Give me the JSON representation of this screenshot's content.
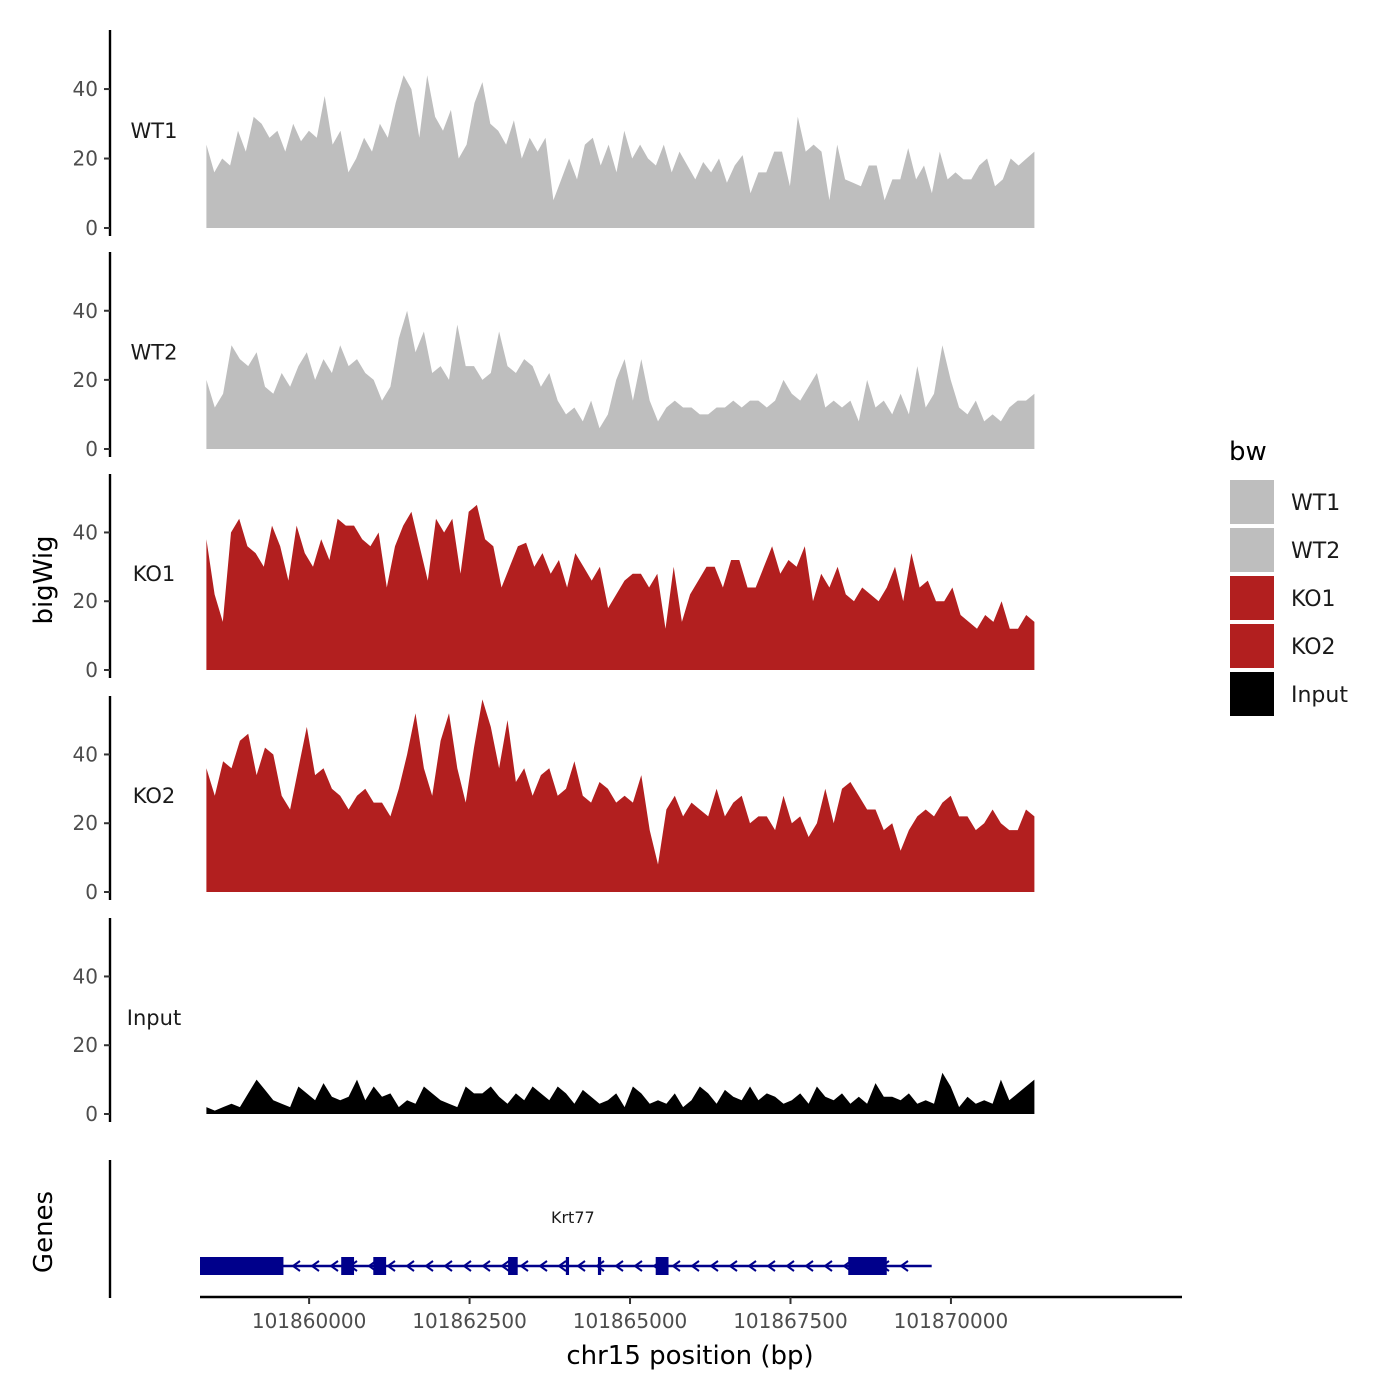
{
  "chart_data": {
    "type": "area",
    "ylabel": "bigWig",
    "xlabel": "chr15 position (bp)",
    "genes_label": "Genes",
    "ylim": [
      0,
      57
    ],
    "yticks": [
      0,
      20,
      40
    ],
    "x_range": [
      101858300,
      101873600
    ],
    "xticks": [
      101860000,
      101862500,
      101865000,
      101867500,
      101870000
    ],
    "xtick_labels": [
      "101860000",
      "101862500",
      "101865000",
      "101867500",
      "101870000"
    ],
    "legend": {
      "title": "bw",
      "position": "right",
      "entries": [
        {
          "label": "WT1",
          "color": "#bebebe"
        },
        {
          "label": "WT2",
          "color": "#bebebe"
        },
        {
          "label": "KO1",
          "color": "#b21f1f"
        },
        {
          "label": "KO2",
          "color": "#b21f1f"
        },
        {
          "label": "Input",
          "color": "#000000"
        }
      ]
    },
    "x_start": 101858400,
    "x_end": 101871300,
    "tracks": [
      {
        "name": "WT1",
        "color": "#bebebe",
        "values": [
          24,
          16,
          20,
          18,
          28,
          22,
          32,
          30,
          26,
          28,
          22,
          30,
          25,
          28,
          26,
          38,
          24,
          28,
          16,
          20,
          26,
          22,
          30,
          26,
          36,
          44,
          40,
          26,
          44,
          32,
          28,
          34,
          20,
          24,
          36,
          42,
          30,
          28,
          24,
          31,
          20,
          26,
          22,
          26,
          8,
          14,
          20,
          14,
          24,
          26,
          18,
          24,
          16,
          28,
          20,
          24,
          20,
          18,
          24,
          16,
          22,
          18,
          14,
          19,
          16,
          20,
          13,
          18,
          21,
          10,
          16,
          16,
          22,
          22,
          12,
          32,
          22,
          24,
          22,
          8,
          24,
          14,
          13,
          12,
          18,
          18,
          8,
          14,
          14,
          23,
          14,
          18,
          10,
          22,
          14,
          16,
          14,
          14,
          18,
          20,
          12,
          14,
          20,
          18,
          20,
          22
        ]
      },
      {
        "name": "WT2",
        "color": "#bebebe",
        "values": [
          20,
          12,
          16,
          30,
          26,
          24,
          28,
          18,
          16,
          22,
          18,
          24,
          28,
          20,
          26,
          22,
          30,
          24,
          26,
          22,
          20,
          14,
          18,
          32,
          40,
          28,
          34,
          22,
          24,
          20,
          36,
          24,
          24,
          20,
          22,
          34,
          24,
          22,
          26,
          24,
          18,
          22,
          14,
          10,
          12,
          8,
          14,
          6,
          10,
          20,
          26,
          14,
          26,
          14,
          8,
          12,
          14,
          12,
          12,
          10,
          10,
          12,
          12,
          14,
          12,
          14,
          14,
          12,
          14,
          20,
          16,
          14,
          18,
          22,
          12,
          14,
          12,
          14,
          8,
          20,
          12,
          14,
          10,
          16,
          10,
          24,
          12,
          16,
          30,
          20,
          12,
          10,
          14,
          8,
          10,
          8,
          12,
          14,
          14,
          16
        ]
      },
      {
        "name": "KO1",
        "color": "#b21f1f",
        "values": [
          38,
          22,
          14,
          40,
          44,
          36,
          34,
          30,
          42,
          36,
          26,
          42,
          34,
          30,
          38,
          32,
          44,
          42,
          42,
          38,
          36,
          40,
          24,
          36,
          42,
          46,
          36,
          26,
          44,
          40,
          44,
          28,
          46,
          48,
          38,
          36,
          24,
          30,
          36,
          37,
          30,
          34,
          28,
          32,
          24,
          34,
          30,
          26,
          30,
          18,
          22,
          26,
          28,
          28,
          24,
          28,
          12,
          30,
          14,
          22,
          26,
          30,
          30,
          24,
          32,
          32,
          24,
          24,
          30,
          36,
          28,
          32,
          30,
          36,
          20,
          28,
          24,
          30,
          22,
          20,
          24,
          22,
          20,
          24,
          30,
          20,
          34,
          24,
          26,
          20,
          20,
          24,
          16,
          14,
          12,
          16,
          14,
          20,
          12,
          12,
          16,
          14
        ]
      },
      {
        "name": "KO2",
        "color": "#b21f1f",
        "values": [
          36,
          28,
          38,
          36,
          44,
          46,
          34,
          42,
          40,
          28,
          24,
          36,
          48,
          34,
          36,
          30,
          28,
          24,
          28,
          30,
          26,
          26,
          22,
          30,
          40,
          52,
          36,
          28,
          44,
          52,
          36,
          26,
          42,
          56,
          48,
          36,
          50,
          32,
          36,
          28,
          34,
          36,
          28,
          30,
          38,
          28,
          26,
          32,
          30,
          26,
          28,
          26,
          34,
          18,
          8,
          24,
          28,
          22,
          26,
          24,
          22,
          30,
          22,
          26,
          28,
          20,
          22,
          22,
          18,
          28,
          20,
          22,
          16,
          20,
          30,
          20,
          30,
          32,
          28,
          24,
          24,
          18,
          20,
          12,
          18,
          22,
          24,
          22,
          26,
          28,
          22,
          22,
          18,
          20,
          24,
          20,
          18,
          18,
          24,
          22
        ]
      },
      {
        "name": "Input",
        "color": "#000000",
        "values": [
          2,
          1,
          2,
          3,
          2,
          6,
          10,
          7,
          4,
          3,
          2,
          8,
          6,
          4,
          9,
          5,
          4,
          5,
          10,
          4,
          8,
          5,
          6,
          2,
          4,
          3,
          8,
          6,
          4,
          3,
          2,
          8,
          6,
          6,
          8,
          5,
          3,
          6,
          4,
          8,
          6,
          4,
          8,
          6,
          3,
          7,
          5,
          3,
          4,
          6,
          2,
          8,
          6,
          3,
          4,
          3,
          6,
          2,
          4,
          8,
          6,
          3,
          7,
          5,
          4,
          8,
          4,
          6,
          5,
          3,
          4,
          6,
          3,
          8,
          5,
          4,
          6,
          3,
          5,
          3,
          9,
          5,
          5,
          4,
          6,
          3,
          4,
          3,
          12,
          8,
          2,
          5,
          3,
          4,
          3,
          10,
          4,
          6,
          8,
          10
        ]
      }
    ],
    "gene": {
      "name": "Krt77",
      "color": "#00008b",
      "start": 101858300,
      "end": 101869700,
      "strand": "-",
      "exons": [
        [
          101858300,
          101859600
        ],
        [
          101860500,
          101860700
        ],
        [
          101861000,
          101861200
        ],
        [
          101863100,
          101863250
        ],
        [
          101864000,
          101864050
        ],
        [
          101864500,
          101864550
        ],
        [
          101865400,
          101865600
        ],
        [
          101868400,
          101869000
        ]
      ]
    }
  }
}
